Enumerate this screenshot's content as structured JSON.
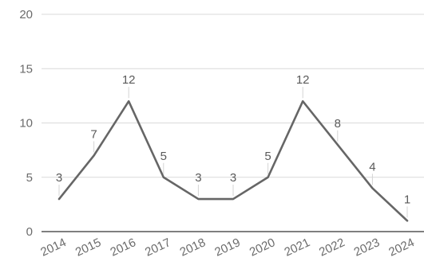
{
  "chart_data": {
    "type": "line",
    "categories": [
      "2014",
      "2015",
      "2016",
      "2017",
      "2018",
      "2019",
      "2020",
      "2021",
      "2022",
      "2023",
      "2024"
    ],
    "series": [
      {
        "values": [
          3,
          7,
          12,
          5,
          3,
          3,
          5,
          12,
          8,
          4,
          1
        ]
      }
    ],
    "ylim": [
      0,
      20
    ],
    "yticks": [
      0,
      5,
      10,
      15,
      20
    ],
    "grid": true,
    "data_labels": true,
    "colors": {
      "line": "#666666",
      "grid": "#d9d9d9",
      "baseline": "#333333",
      "leader": "#d4d4d4"
    }
  }
}
